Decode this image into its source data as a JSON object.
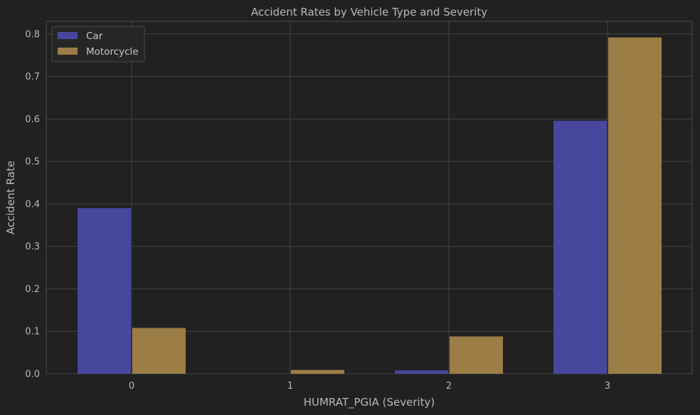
{
  "chart_data": {
    "type": "bar",
    "title": "Accident Rates by Vehicle Type and Severity",
    "xlabel": "HUMRAT_PGIA (Severity)",
    "ylabel": "Accident Rate",
    "categories": [
      "0",
      "1",
      "2",
      "3"
    ],
    "series": [
      {
        "name": "Car",
        "values": [
          0.39,
          0.0,
          0.008,
          0.596
        ],
        "color": "#46479d"
      },
      {
        "name": "Motorcycle",
        "values": [
          0.108,
          0.009,
          0.088,
          0.792
        ],
        "color": "#9b7d45"
      }
    ],
    "ylim": [
      0,
      0.83
    ],
    "yticks": [
      "0.0",
      "0.1",
      "0.2",
      "0.3",
      "0.4",
      "0.5",
      "0.6",
      "0.7",
      "0.8"
    ],
    "grid": true,
    "legend_position": "top-left"
  }
}
